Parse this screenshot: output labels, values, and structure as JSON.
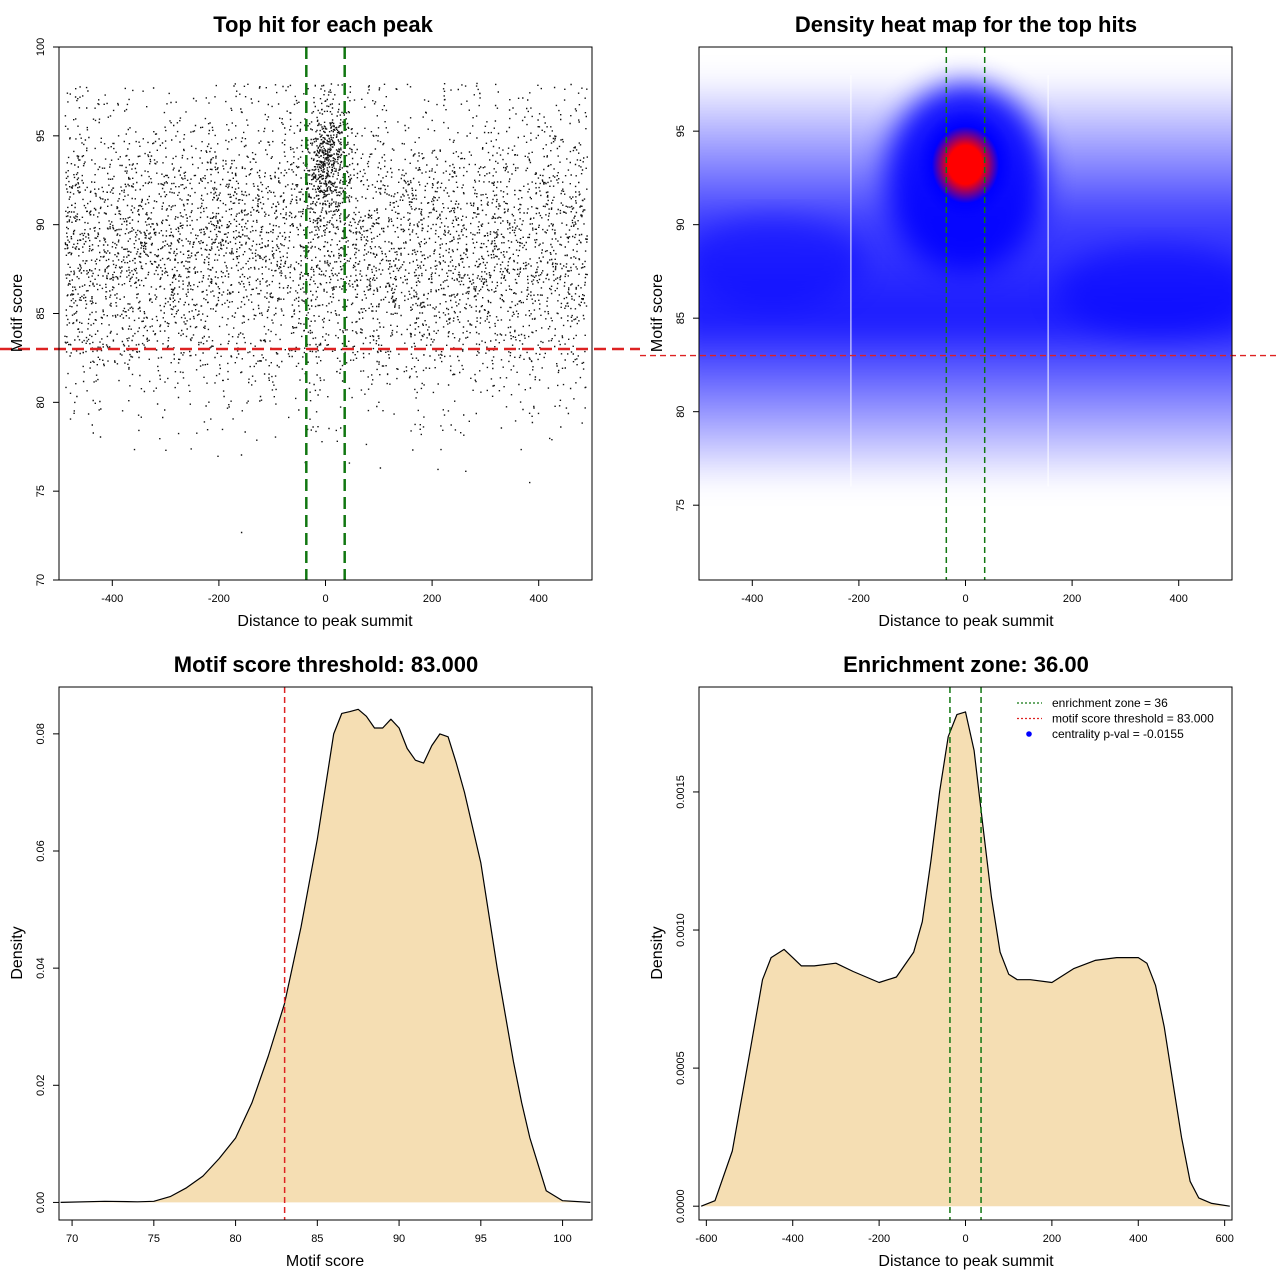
{
  "chart_data": [
    {
      "type": "scatter",
      "title": "Top hit for each peak",
      "xlabel": "Distance to peak summit",
      "ylabel": "Motif score",
      "xlim": [
        -500,
        500
      ],
      "ylim": [
        70,
        100
      ],
      "xticks": [
        -400,
        -200,
        0,
        200,
        400
      ],
      "yticks": [
        70,
        75,
        80,
        85,
        90,
        95,
        100
      ],
      "point_count_estimate": 8000,
      "background_cloud": {
        "x_range": [
          -490,
          490
        ],
        "y_mean": 88.5,
        "y_sd": 4.2,
        "y_range": [
          70.9,
          98.1
        ]
      },
      "central_cluster": {
        "x_center": 0,
        "x_sd": 20,
        "y_center": 93.5,
        "y_sd": 1.7
      },
      "hlines": [
        {
          "y": 83,
          "color": "#dd2222",
          "style": "dashed"
        }
      ],
      "vlines": [
        {
          "x": -36,
          "color": "#117711",
          "style": "dashed"
        },
        {
          "x": 36,
          "color": "#117711",
          "style": "dashed"
        }
      ]
    },
    {
      "type": "heatmap",
      "title": "Density heat map for the top hits",
      "xlabel": "Distance to peak summit",
      "ylabel": "Motif score",
      "xlim": [
        -500,
        500
      ],
      "ylim": [
        71,
        99.5
      ],
      "xticks": [
        -400,
        -200,
        0,
        200,
        400
      ],
      "yticks": [
        75,
        80,
        85,
        90,
        95
      ],
      "colors": [
        "#ffffff",
        "#0000ff",
        "#ff0000"
      ],
      "density_peak": {
        "x": 0,
        "y": 93.2
      },
      "band": {
        "y_center": 87,
        "y_range": [
          76,
          98
        ]
      },
      "light_columns_x": [
        -215,
        155
      ],
      "hlines": [
        {
          "y": 83,
          "color": "#dd2222",
          "style": "dashed"
        }
      ],
      "vlines": [
        {
          "x": -36,
          "color": "#117711",
          "style": "dashed"
        },
        {
          "x": 36,
          "color": "#117711",
          "style": "dashed"
        }
      ]
    },
    {
      "type": "area",
      "title": "Motif score threshold: 83.000",
      "xlabel": "Motif score",
      "ylabel": "Density",
      "xlim": [
        69.2,
        101.8
      ],
      "ylim": [
        -0.003,
        0.088
      ],
      "xticks": [
        70,
        75,
        80,
        85,
        90,
        95,
        100
      ],
      "yticks": [
        0.0,
        0.02,
        0.04,
        0.06,
        0.08
      ],
      "ytick_labels": [
        "0.00",
        "0.02",
        "0.04",
        "0.06",
        "0.08"
      ],
      "fill_color": "#f5deb3",
      "x": [
        69.3,
        72,
        74,
        75,
        76,
        77,
        78,
        79,
        80,
        81,
        82,
        83,
        84,
        85,
        86,
        86.5,
        87,
        87.5,
        88,
        88.5,
        89,
        89.5,
        90,
        90.5,
        91,
        91.5,
        92,
        92.5,
        93,
        93.5,
        94,
        95,
        96,
        97,
        97.5,
        98,
        99,
        100,
        101.7
      ],
      "y": [
        0.0,
        0.0002,
        0.0001,
        0.0002,
        0.001,
        0.0025,
        0.0045,
        0.0075,
        0.011,
        0.017,
        0.025,
        0.034,
        0.047,
        0.062,
        0.08,
        0.0835,
        0.0838,
        0.0842,
        0.083,
        0.081,
        0.081,
        0.0825,
        0.081,
        0.0775,
        0.0755,
        0.075,
        0.078,
        0.08,
        0.0795,
        0.075,
        0.07,
        0.058,
        0.04,
        0.024,
        0.017,
        0.011,
        0.002,
        0.0003,
        0.0
      ],
      "vlines": [
        {
          "x": 83,
          "color": "#dd2222",
          "style": "dashed"
        }
      ]
    },
    {
      "type": "area",
      "title": "Enrichment zone: 36.00",
      "xlabel": "Distance to peak summit",
      "ylabel": "Density",
      "xlim": [
        -617,
        617
      ],
      "ylim": [
        -5e-05,
        0.00188
      ],
      "xticks": [
        -600,
        -400,
        -200,
        0,
        200,
        400,
        600
      ],
      "yticks": [
        0.0,
        0.0005,
        0.001,
        0.0015
      ],
      "ytick_labels": [
        "0.0000",
        "0.0005",
        "0.0010",
        "0.0015"
      ],
      "fill_color": "#f5deb3",
      "x": [
        -612,
        -580,
        -540,
        -500,
        -470,
        -450,
        -420,
        -400,
        -380,
        -350,
        -300,
        -260,
        -200,
        -160,
        -120,
        -100,
        -80,
        -60,
        -40,
        -20,
        0,
        20,
        40,
        60,
        80,
        100,
        120,
        150,
        200,
        250,
        300,
        350,
        400,
        420,
        440,
        460,
        480,
        500,
        520,
        540,
        570,
        612
      ],
      "y": [
        0.0,
        2e-05,
        0.0002,
        0.00055,
        0.00082,
        0.0009,
        0.00093,
        0.0009,
        0.00087,
        0.00087,
        0.00088,
        0.00085,
        0.00081,
        0.00083,
        0.00092,
        0.00103,
        0.00125,
        0.0015,
        0.0017,
        0.00178,
        0.00179,
        0.00165,
        0.00138,
        0.00112,
        0.00092,
        0.00084,
        0.00082,
        0.00082,
        0.00081,
        0.00086,
        0.00089,
        0.0009,
        0.0009,
        0.00088,
        0.0008,
        0.00065,
        0.00045,
        0.00025,
        9e-05,
        3e-05,
        1e-05,
        0.0
      ],
      "vlines": [
        {
          "x": -36,
          "color": "#117711",
          "style": "dashed"
        },
        {
          "x": 36,
          "color": "#117711",
          "style": "dashed"
        }
      ],
      "legend": {
        "position": "top-right",
        "entries": [
          {
            "label": "enrichment zone = 36",
            "color": "#117711",
            "style": "dotted"
          },
          {
            "label": "motif score threshold = 83.000",
            "color": "#dd2222",
            "style": "dotted"
          },
          {
            "label": "centrality p-val = -0.0155",
            "color": "#0000ff",
            "style": "point"
          }
        ]
      }
    }
  ]
}
